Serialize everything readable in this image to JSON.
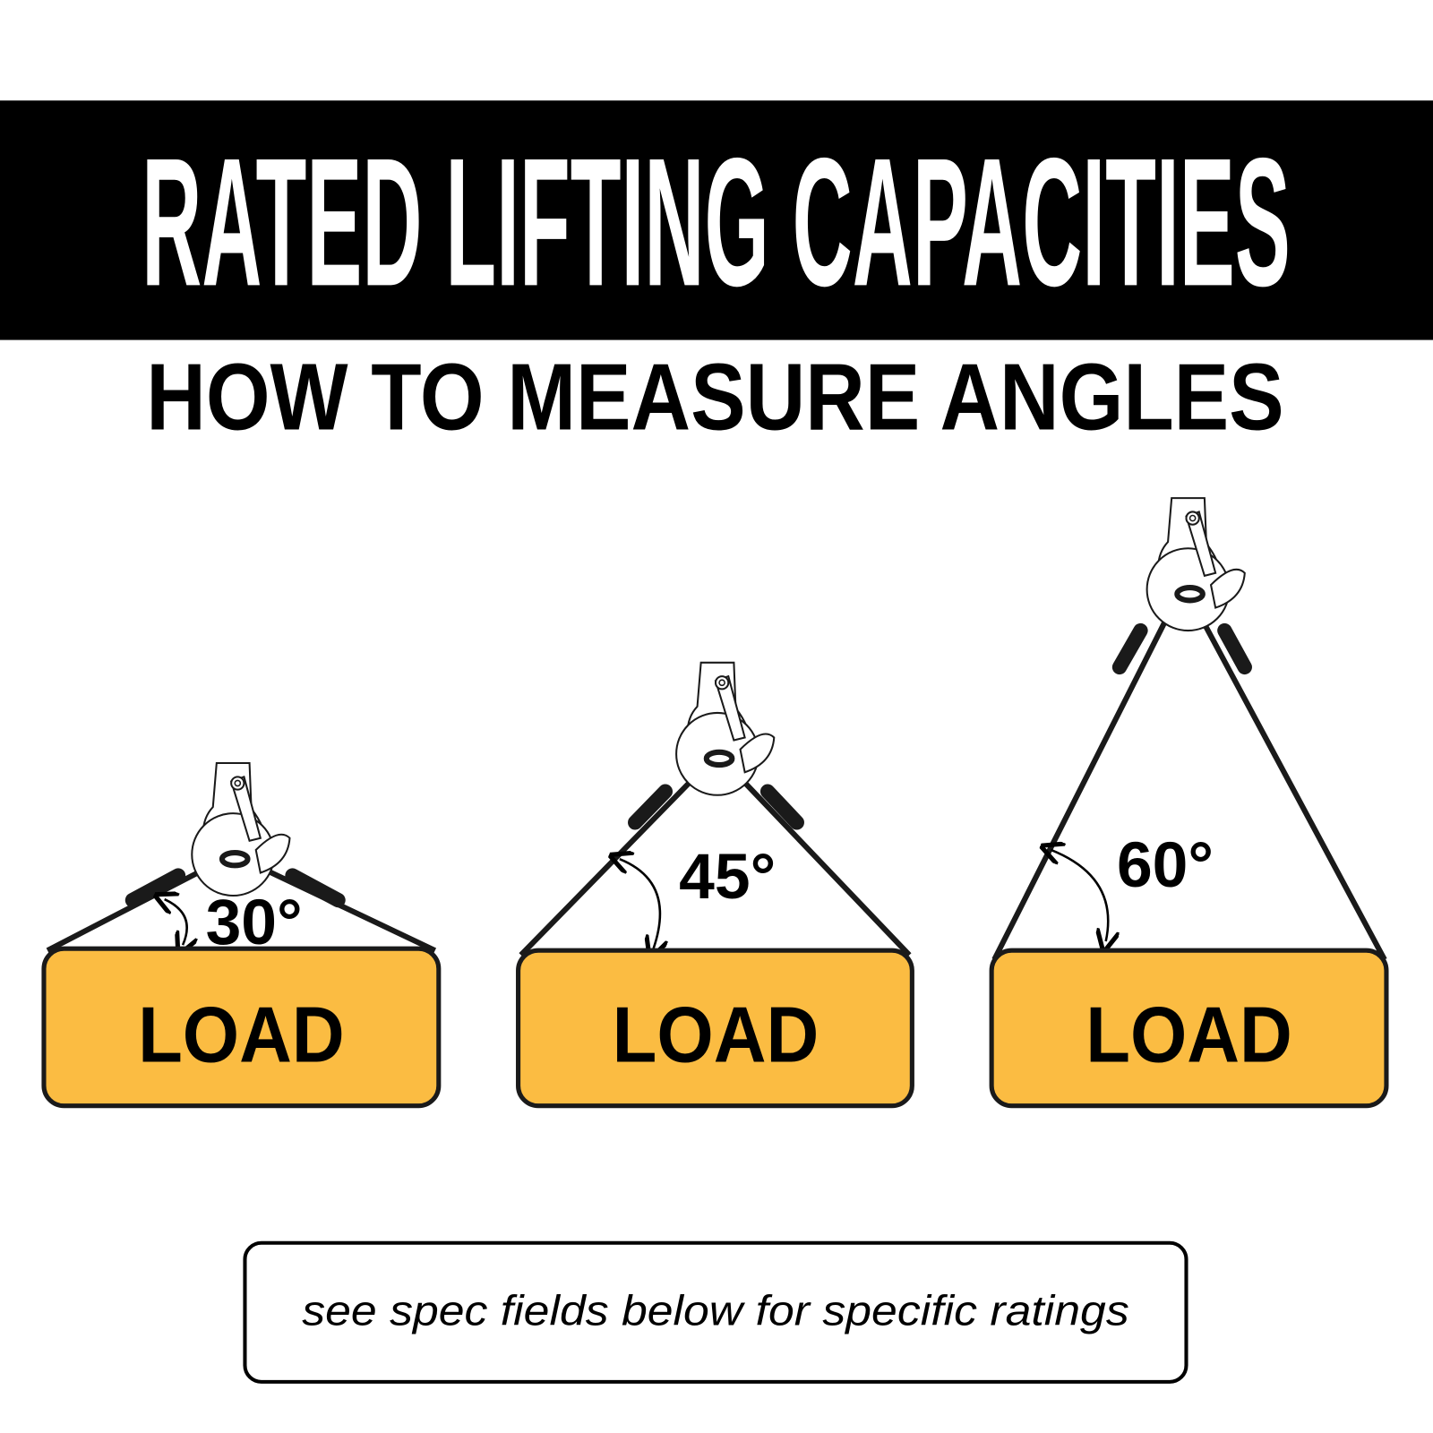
{
  "header": {
    "title": "RATED LIFTING CAPACITIES",
    "subtitle": "HOW TO MEASURE ANGLES"
  },
  "diagrams": [
    {
      "angle_label": "30°",
      "load_label": "LOAD"
    },
    {
      "angle_label": "45°",
      "load_label": "LOAD"
    },
    {
      "angle_label": "60°",
      "load_label": "LOAD"
    }
  ],
  "footer": {
    "note": "see spec fields below for specific ratings"
  },
  "colors": {
    "banner": "#000000",
    "load_fill": "#FBBC42",
    "outline": "#1a1a1a"
  },
  "icons": [
    "crane-hook-icon",
    "sling-icon",
    "angle-arrow-icon"
  ]
}
